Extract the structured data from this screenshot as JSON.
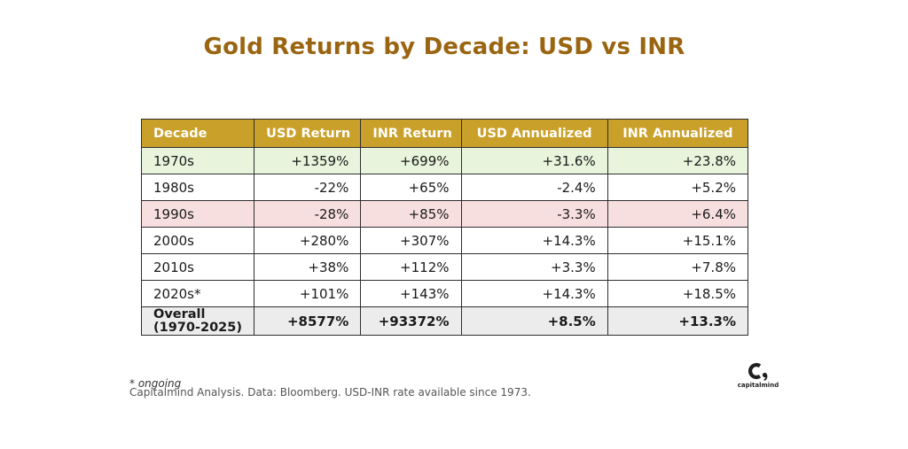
{
  "chart_data": {
    "type": "table",
    "title": "Gold Returns by Decade: USD vs INR",
    "columns": [
      "Decade",
      "USD Return",
      "INR Return",
      "USD Annualized",
      "INR Annualized"
    ],
    "rows": [
      {
        "decade": "1970s",
        "usd_return": "+1359%",
        "inr_return": "+699%",
        "usd_annualized": "+31.6%",
        "inr_annualized": "+23.8%",
        "highlight": "green"
      },
      {
        "decade": "1980s",
        "usd_return": "-22%",
        "inr_return": "+65%",
        "usd_annualized": "-2.4%",
        "inr_annualized": "+5.2%",
        "highlight": "none"
      },
      {
        "decade": "1990s",
        "usd_return": "-28%",
        "inr_return": "+85%",
        "usd_annualized": "-3.3%",
        "inr_annualized": "+6.4%",
        "highlight": "red"
      },
      {
        "decade": "2000s",
        "usd_return": "+280%",
        "inr_return": "+307%",
        "usd_annualized": "+14.3%",
        "inr_annualized": "+15.1%",
        "highlight": "none"
      },
      {
        "decade": "2010s",
        "usd_return": "+38%",
        "inr_return": "+112%",
        "usd_annualized": "+3.3%",
        "inr_annualized": "+7.8%",
        "highlight": "none"
      },
      {
        "decade": "2020s*",
        "usd_return": "+101%",
        "inr_return": "+143%",
        "usd_annualized": "+14.3%",
        "inr_annualized": "+18.5%",
        "highlight": "none"
      }
    ],
    "total": {
      "decade_line1": "Overall",
      "decade_line2": "(1970-2025)",
      "usd_return": "+8577%",
      "inr_return": "+93372%",
      "usd_annualized": "+8.5%",
      "inr_annualized": "+13.3%"
    },
    "footnote": "* ongoing",
    "source": "Capitalmind Analysis. Data: Bloomberg. USD-INR rate available since 1973."
  },
  "colors": {
    "title": "#9a6511",
    "header_bg": "#c9a02a",
    "positive_row": "#e8f4dc",
    "negative_row": "#f7dfe0",
    "total_row": "#ececec"
  },
  "logo": {
    "icon": "capitalmind-logo-icon",
    "text": "capitalmind"
  }
}
